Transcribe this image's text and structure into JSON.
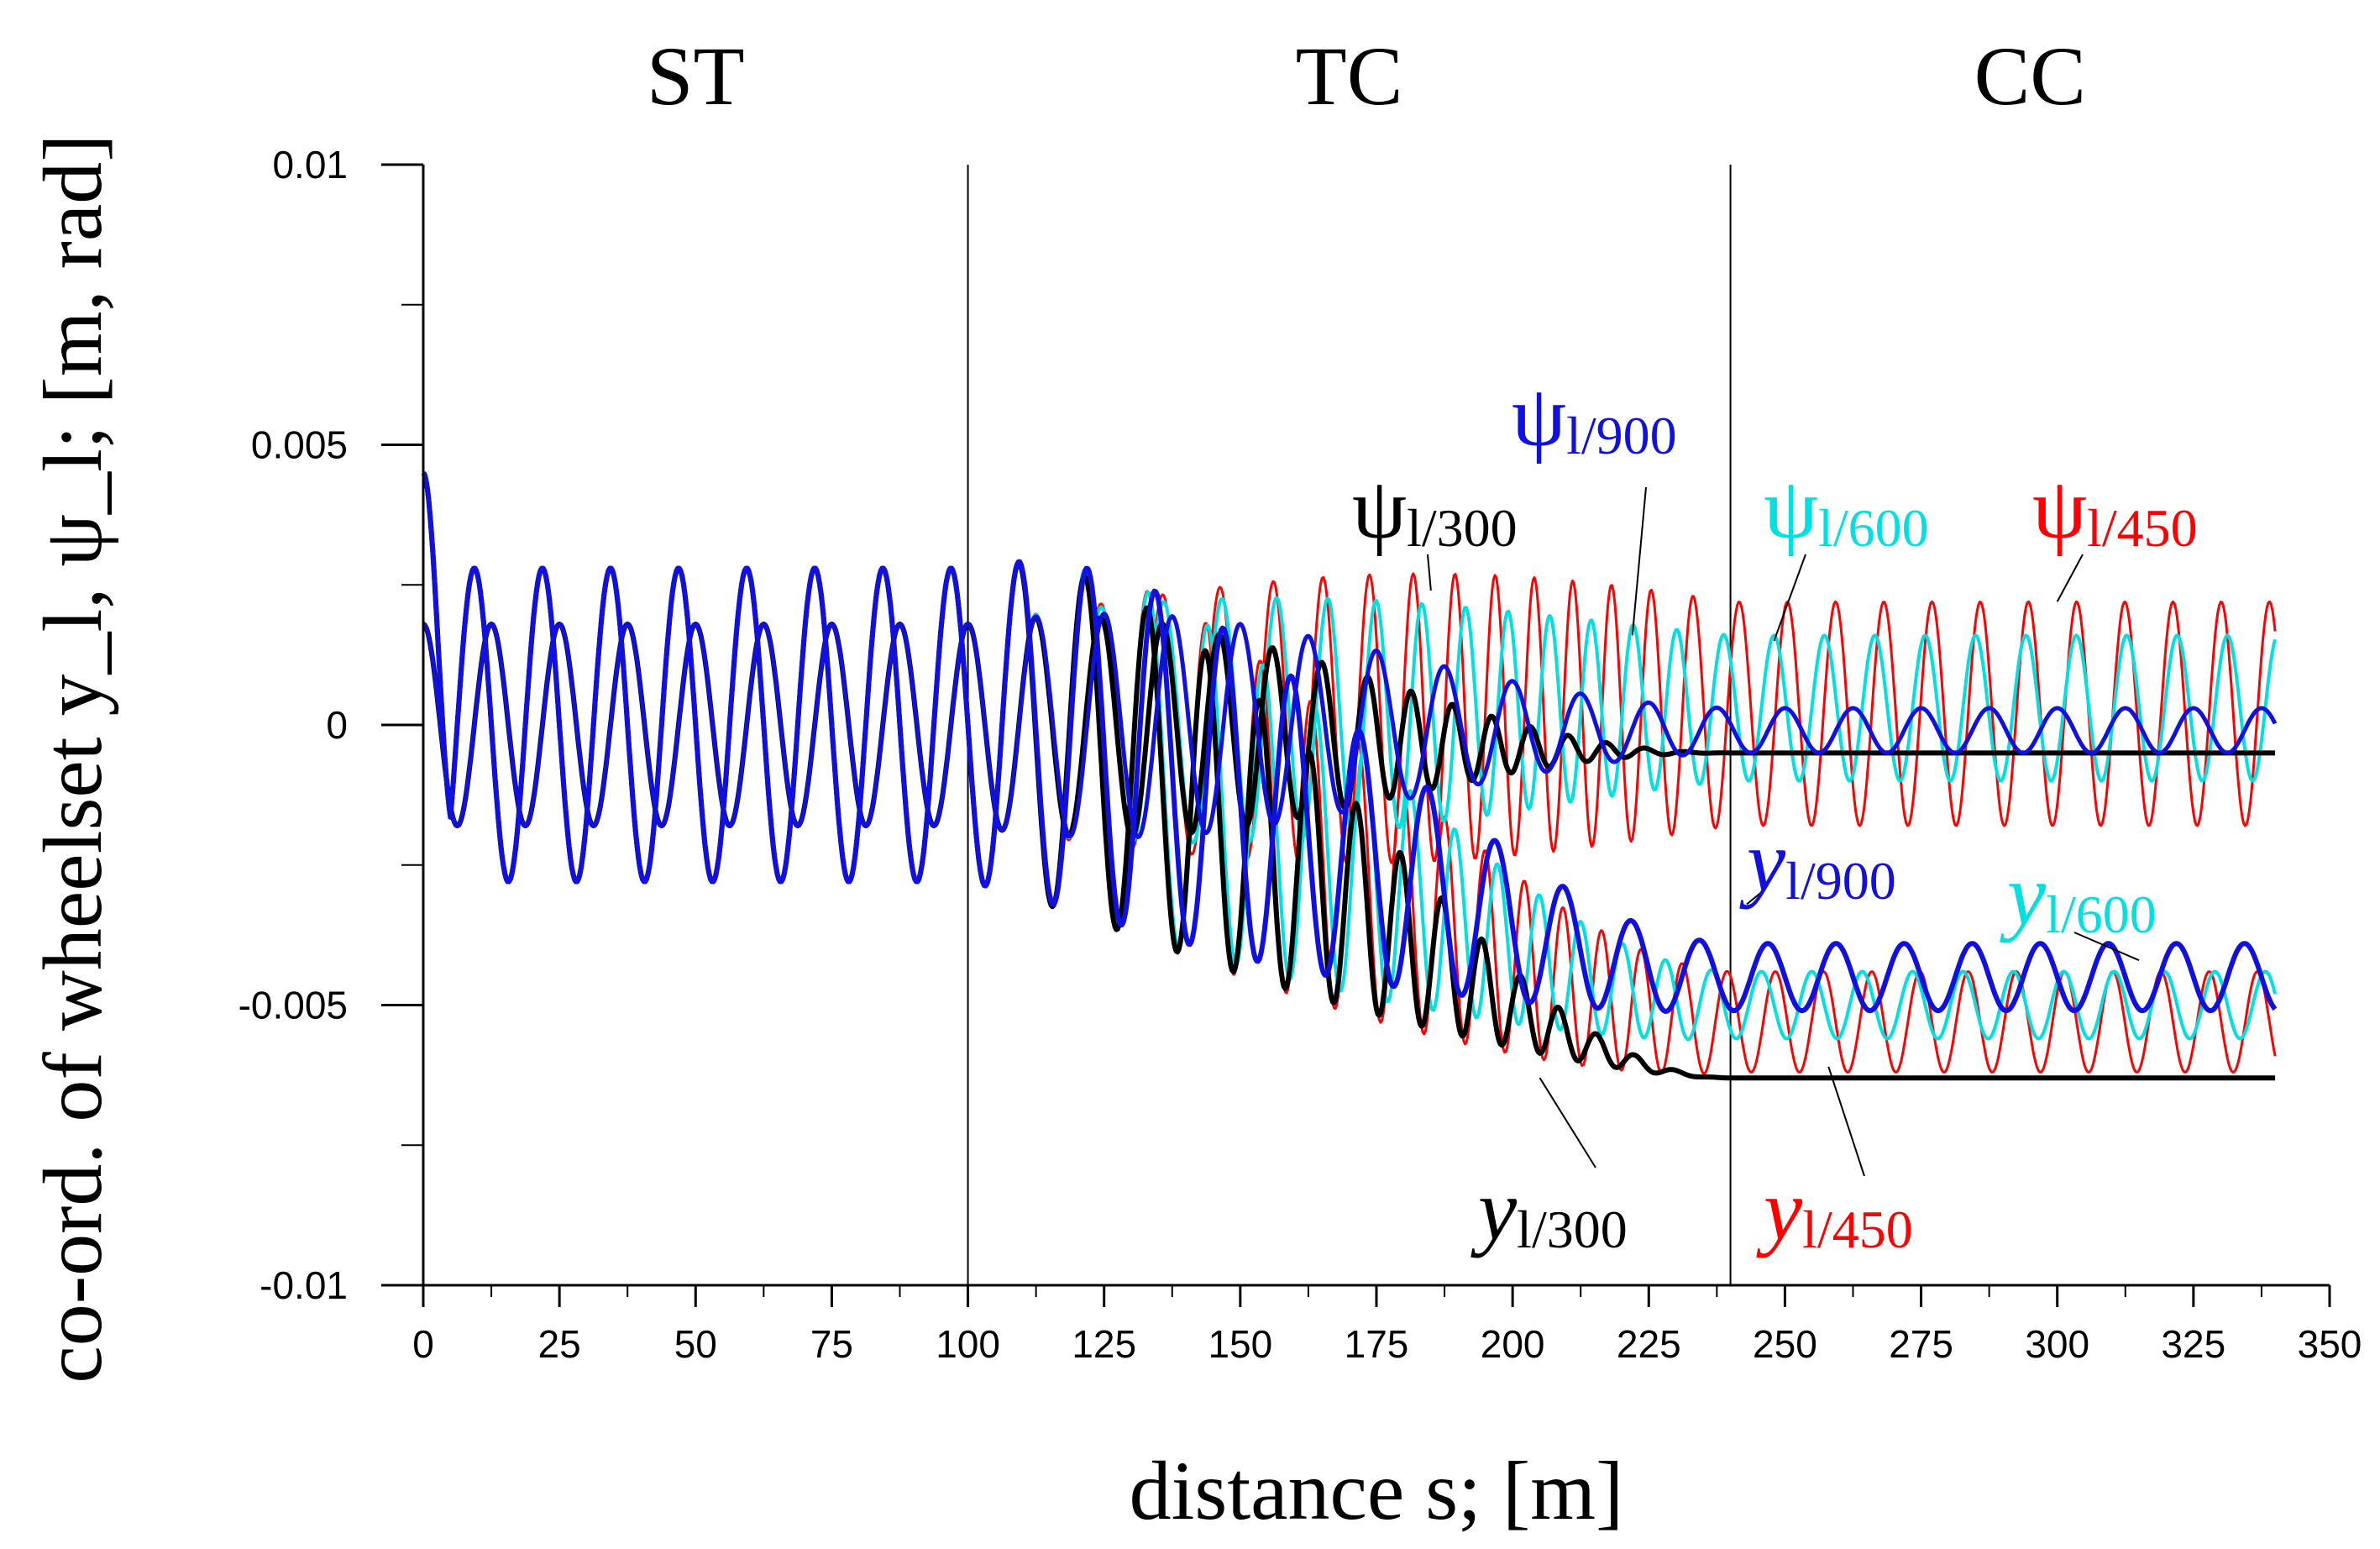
{
  "chart_data": {
    "type": "line",
    "xlabel": "distance s; [m]",
    "ylabel": "co-ord. of wheelset y_l, ψ_l; [m, rad]",
    "xlim": [
      0,
      350
    ],
    "ylim": [
      -0.01,
      0.01
    ],
    "x_ticks": [
      0,
      25,
      50,
      75,
      100,
      125,
      150,
      175,
      200,
      225,
      250,
      275,
      300,
      325,
      350
    ],
    "x_tick_labels": [
      "0",
      "25",
      "50",
      "75",
      "100",
      "125",
      "150",
      "175",
      "200",
      "225",
      "250",
      "275",
      "300",
      "325",
      "350"
    ],
    "y_ticks": [
      0.01,
      0.005,
      0,
      -0.005,
      -0.01
    ],
    "y_tick_labels": [
      "0.01",
      "0.005",
      "0",
      "-0.005",
      "-0.01"
    ],
    "section_boundaries": [
      100,
      240
    ],
    "regions": [
      {
        "label": "ST",
        "center": 50
      },
      {
        "label": "TC",
        "center": 170
      },
      {
        "label": "CC",
        "center": 295
      }
    ],
    "colors": {
      "R300": "#000000",
      "R450": "#ff0000",
      "R600": "#00e0e0",
      "R900": "#1010e0"
    },
    "series_model": {
      "x_range": [
        0,
        340
      ],
      "tangent_length": 100,
      "transition_end": 240,
      "y_straight_amplitude": 0.0028,
      "psi_straight_amplitude": 0.0018,
      "straight_wavelength": 12.5
    },
    "series": [
      {
        "name": "y_l/300",
        "var": "y",
        "key": "R300",
        "final_mean": -0.0063,
        "final_amp": 0.0,
        "final_wavelength": 5.0,
        "width": 6
      },
      {
        "name": "ψ_l/300",
        "var": "psi",
        "key": "R300",
        "final_mean": -0.0005,
        "final_amp": 0.0,
        "final_wavelength": 5.0,
        "width": 6
      },
      {
        "name": "y_l/450",
        "var": "y",
        "key": "R450",
        "final_mean": -0.0053,
        "final_amp": 0.0009,
        "final_wavelength": 5.2,
        "width": 3
      },
      {
        "name": "ψ_l/450",
        "var": "psi",
        "key": "R450",
        "final_mean": 0.0002,
        "final_amp": 0.002,
        "final_wavelength": 5.2,
        "width": 3
      },
      {
        "name": "y_l/600",
        "var": "y",
        "key": "R600",
        "final_mean": -0.005,
        "final_amp": 0.0006,
        "final_wavelength": 6.0,
        "width": 4
      },
      {
        "name": "ψ_l/600",
        "var": "psi",
        "key": "R600",
        "final_mean": 0.0003,
        "final_amp": 0.0013,
        "final_wavelength": 6.0,
        "width": 4
      },
      {
        "name": "y_l/900",
        "var": "y",
        "key": "R900",
        "final_mean": -0.0045,
        "final_amp": 0.0006,
        "final_wavelength": 12.5,
        "width": 6
      },
      {
        "name": "ψ_l/900",
        "var": "psi",
        "key": "R900",
        "final_mean": -0.0001,
        "final_amp": 0.0004,
        "final_wavelength": 12.5,
        "width": 5
      }
    ],
    "annotations": [
      {
        "var": "ψ",
        "sub": "l/900",
        "key": "R900"
      },
      {
        "var": "ψ",
        "sub": "l/300",
        "key": "R300"
      },
      {
        "var": "ψ",
        "sub": "l/600",
        "key": "R600"
      },
      {
        "var": "ψ",
        "sub": "l/450",
        "key": "R450"
      },
      {
        "var": "y",
        "sub": "l/900",
        "key": "R900"
      },
      {
        "var": "y",
        "sub": "l/600",
        "key": "R600"
      },
      {
        "var": "y",
        "sub": "l/300",
        "key": "R300"
      },
      {
        "var": "y",
        "sub": "l/450",
        "key": "R450"
      }
    ]
  }
}
